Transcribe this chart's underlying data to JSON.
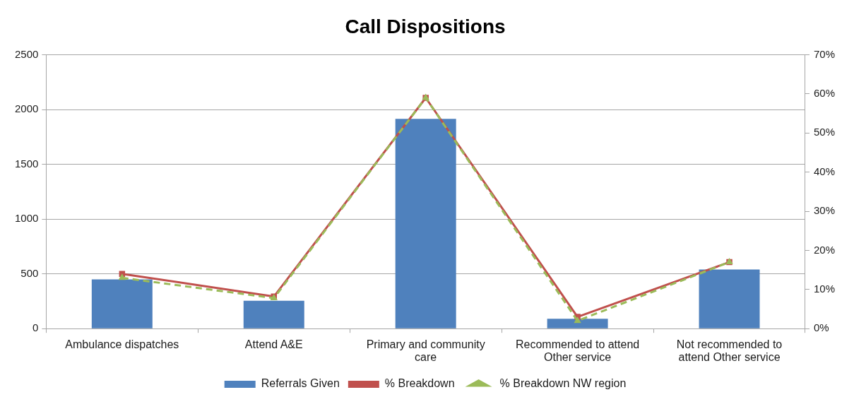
{
  "chart_data": {
    "type": "bar",
    "title": "Call Dispositions",
    "categories": [
      "Ambulance dispatches",
      "Attend A&E",
      "Primary and community care",
      "Recommended to attend Other service",
      "Not recommended to attend Other service"
    ],
    "series": [
      {
        "name": "Referrals Given",
        "color": "#4f81bd",
        "values": [
          450,
          255,
          1915,
          90,
          540
        ]
      },
      {
        "name": "% Breakdown",
        "type": "line",
        "axis": "y2",
        "color": "#c0504d",
        "marker": "square",
        "line_style": "solid",
        "values": [
          14,
          8.2,
          59,
          3,
          17
        ]
      },
      {
        "name": "% Breakdown NW region",
        "type": "line",
        "axis": "y2",
        "color": "#9bbb59",
        "marker": "triangle",
        "line_style": "dashed",
        "values": [
          13,
          7.8,
          59,
          2,
          17
        ]
      }
    ],
    "ylim": [
      0,
      2500
    ],
    "yticks": [
      0,
      500,
      1000,
      1500,
      2000,
      2500
    ],
    "y2lim": [
      0,
      70
    ],
    "y2ticks": [
      {
        "value": 0,
        "label": "0%"
      },
      {
        "value": 10,
        "label": "10%"
      },
      {
        "value": 20,
        "label": "20%"
      },
      {
        "value": 30,
        "label": "30%"
      },
      {
        "value": 40,
        "label": "40%"
      },
      {
        "value": 50,
        "label": "50%"
      },
      {
        "value": 60,
        "label": "60%"
      },
      {
        "value": 70,
        "label": "70%"
      }
    ],
    "grid": "y",
    "legend": "bottom"
  }
}
